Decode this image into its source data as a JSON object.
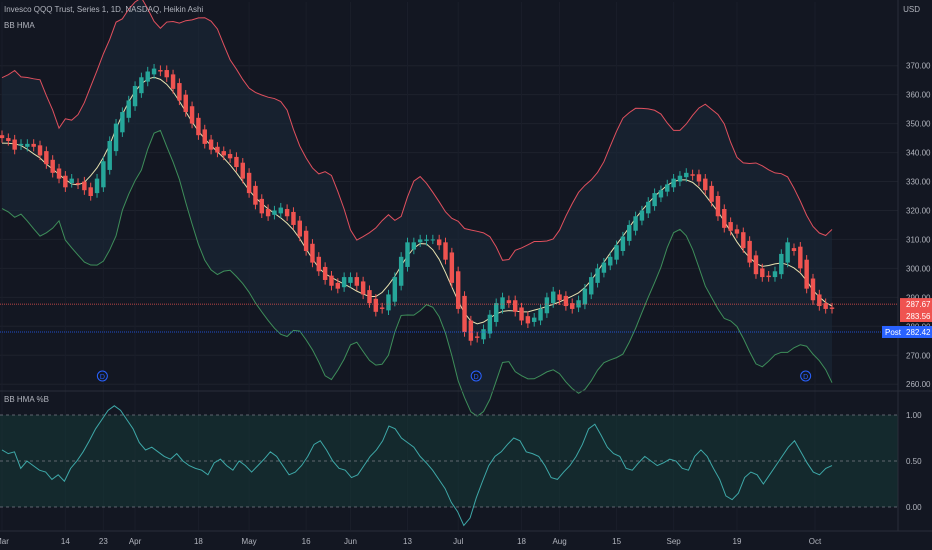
{
  "header": {
    "title": "Invesco QQQ Trust, Series 1, 1D, NASDAQ, Heikin Ashi",
    "indicator": "BB HMA",
    "lower_indicator": "BB HMA %B",
    "currency": "USD",
    "post_label": "Post"
  },
  "colors": {
    "background": "#131722",
    "up": "#26a69a",
    "down": "#ef5350",
    "upper_band": "#e0505e",
    "lower_band": "#3e8e5a",
    "basis": "#e8e2b0",
    "pctb_line": "#3ea8a8",
    "dividend": "#2962ff"
  },
  "price_labels": {
    "upper": "287.67",
    "lower": "283.56",
    "post": "282.42"
  },
  "chart_data": [
    {
      "type": "candlestick",
      "title": "Invesco QQQ Trust, Series 1, 1D, NASDAQ, Heikin Ashi",
      "ylabel": "USD",
      "ylim": [
        258,
        392
      ],
      "yticks": [
        260,
        270,
        280,
        290,
        300,
        310,
        320,
        330,
        340,
        350,
        360,
        370
      ],
      "ytick_labels": [
        "260.00",
        "270.00",
        "280.00",
        "290.00",
        "300.00",
        "310.00",
        "320.00",
        "330.00",
        "340.00",
        "350.00",
        "360.00",
        "370.00"
      ],
      "xtick_labels": [
        "Mar",
        "14",
        "23",
        "Apr",
        "18",
        "May",
        "16",
        "Jun",
        "13",
        "Jul",
        "18",
        "Aug",
        "15",
        "Sep",
        "19",
        "Oct"
      ],
      "dividend_labels": [
        "D",
        "D",
        "D"
      ],
      "horizontal_lines": [
        287.67,
        283.56
      ],
      "series": [
        {
          "name": "",
          "kind": "heikin_ashi",
          "closes": [
            345,
            344,
            341,
            343,
            343,
            342,
            339,
            336,
            333,
            331,
            328,
            331,
            329,
            327,
            325,
            331,
            337,
            344,
            350,
            354,
            358,
            363,
            366,
            368,
            369,
            368,
            366,
            362,
            358,
            354,
            350,
            346,
            343,
            341,
            340,
            339,
            338,
            335,
            331,
            326,
            322,
            319,
            318,
            320,
            321,
            318,
            315,
            311,
            306,
            302,
            299,
            296,
            294,
            293,
            297,
            297,
            294,
            291,
            288,
            285,
            286,
            291,
            297,
            304,
            309,
            309,
            310,
            310,
            310,
            308,
            303,
            295,
            286,
            278,
            275,
            276,
            279,
            284,
            288,
            290,
            288,
            285,
            282,
            281,
            283,
            286,
            290,
            292,
            289,
            287,
            286,
            289,
            293,
            297,
            300,
            302,
            304,
            308,
            311,
            315,
            318,
            320,
            323,
            326,
            327,
            329,
            331,
            332,
            333,
            332,
            330,
            327,
            323,
            318,
            314,
            313,
            312,
            307,
            302,
            298,
            297,
            297,
            299,
            305,
            309,
            306,
            300,
            293,
            289,
            287,
            286,
            286
          ]
        }
      ]
    },
    {
      "type": "line",
      "title": "BB HMA %B",
      "ylim": [
        -0.25,
        1.25
      ],
      "yticks": [
        0,
        0.5,
        1
      ],
      "ytick_labels": [
        "0.00",
        "0.50",
        "1.00"
      ],
      "reference_lines": [
        0,
        0.5,
        1
      ],
      "series": [
        {
          "name": "",
          "values": [
            0.62,
            0.58,
            0.6,
            0.42,
            0.5,
            0.45,
            0.4,
            0.38,
            0.3,
            0.35,
            0.28,
            0.42,
            0.5,
            0.6,
            0.72,
            0.85,
            0.95,
            1.05,
            1.1,
            1.05,
            0.95,
            0.85,
            0.7,
            0.62,
            0.65,
            0.6,
            0.55,
            0.52,
            0.58,
            0.5,
            0.45,
            0.42,
            0.4,
            0.35,
            0.48,
            0.52,
            0.45,
            0.4,
            0.5,
            0.45,
            0.38,
            0.45,
            0.52,
            0.6,
            0.55,
            0.45,
            0.35,
            0.38,
            0.45,
            0.55,
            0.68,
            0.72,
            0.62,
            0.5,
            0.42,
            0.4,
            0.32,
            0.35,
            0.45,
            0.55,
            0.62,
            0.72,
            0.88,
            0.85,
            0.75,
            0.7,
            0.65,
            0.55,
            0.48,
            0.4,
            0.3,
            0.2,
            0.05,
            -0.05,
            -0.2,
            -0.12,
            0.1,
            0.28,
            0.45,
            0.55,
            0.6,
            0.68,
            0.75,
            0.72,
            0.6,
            0.58,
            0.55,
            0.45,
            0.32,
            0.3,
            0.38,
            0.45,
            0.55,
            0.68,
            0.85,
            0.9,
            0.78,
            0.65,
            0.58,
            0.55,
            0.42,
            0.4,
            0.48,
            0.55,
            0.5,
            0.45,
            0.48,
            0.52,
            0.5,
            0.42,
            0.4,
            0.55,
            0.62,
            0.55,
            0.42,
            0.3,
            0.12,
            0.08,
            0.15,
            0.32,
            0.38,
            0.35,
            0.25,
            0.35,
            0.45,
            0.55,
            0.65,
            0.72,
            0.6,
            0.48,
            0.38,
            0.35,
            0.42,
            0.45
          ]
        }
      ]
    }
  ]
}
